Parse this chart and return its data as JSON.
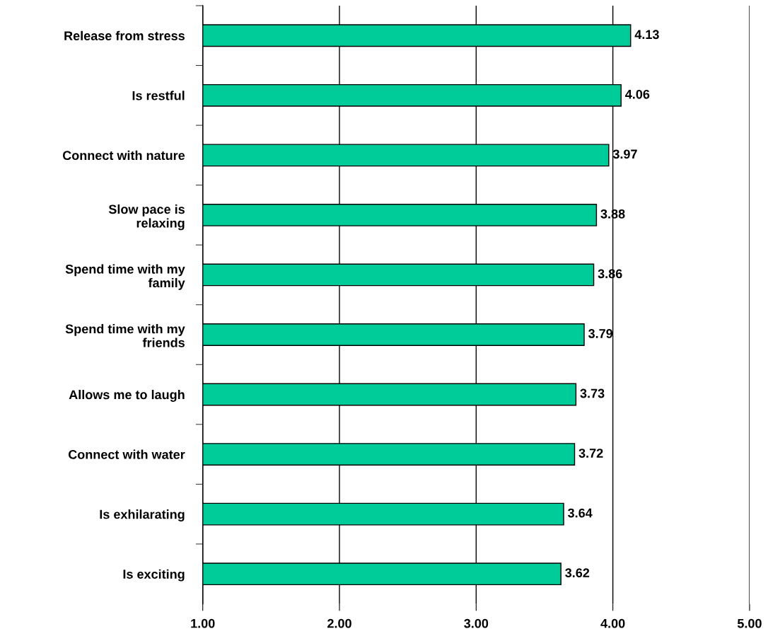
{
  "chart_data": {
    "type": "bar",
    "orientation": "horizontal",
    "categories": [
      "Release from stress",
      "Is restful",
      "Connect with nature",
      "Slow pace is\nrelaxing",
      "Spend time with my\nfamily",
      "Spend time with my\nfriends",
      "Allows me to laugh",
      "Connect with water",
      "Is exhilarating",
      "Is exciting"
    ],
    "values": [
      4.13,
      4.06,
      3.97,
      3.88,
      3.86,
      3.79,
      3.73,
      3.72,
      3.64,
      3.62
    ],
    "color": "#00cc99",
    "xlim": [
      1,
      5
    ],
    "xticks": [
      {
        "value": 1,
        "label": "1.00"
      },
      {
        "value": 2,
        "label": "2.00"
      },
      {
        "value": 3,
        "label": "3.00"
      },
      {
        "value": 4,
        "label": "4.00"
      },
      {
        "value": 5,
        "label": "5.00"
      }
    ],
    "grid": "x",
    "legend": false,
    "data_labels": true
  }
}
